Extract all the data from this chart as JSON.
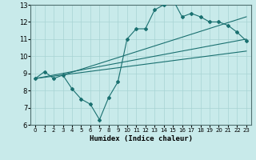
{
  "title": "",
  "xlabel": "Humidex (Indice chaleur)",
  "ylabel": "",
  "bg_color": "#c8eaea",
  "grid_color": "#a8d4d4",
  "line_color": "#1a7070",
  "xlim": [
    -0.5,
    23.5
  ],
  "ylim": [
    6,
    13
  ],
  "xticks": [
    0,
    1,
    2,
    3,
    4,
    5,
    6,
    7,
    8,
    9,
    10,
    11,
    12,
    13,
    14,
    15,
    16,
    17,
    18,
    19,
    20,
    21,
    22,
    23
  ],
  "yticks": [
    6,
    7,
    8,
    9,
    10,
    11,
    12,
    13
  ],
  "line1_x": [
    0,
    1,
    2,
    3,
    4,
    5,
    6,
    7,
    8,
    9,
    10,
    11,
    12,
    13,
    14,
    15,
    16,
    17,
    18,
    19,
    20,
    21,
    22,
    23
  ],
  "line1_y": [
    8.7,
    9.1,
    8.7,
    8.9,
    8.1,
    7.5,
    7.2,
    6.3,
    7.6,
    8.5,
    11.0,
    11.6,
    11.6,
    12.7,
    13.0,
    13.3,
    12.3,
    12.5,
    12.3,
    12.0,
    12.0,
    11.8,
    11.4,
    10.9
  ],
  "line2_x": [
    0,
    23
  ],
  "line2_y": [
    8.7,
    11.0
  ],
  "line3_x": [
    0,
    23
  ],
  "line3_y": [
    8.7,
    10.3
  ],
  "line4_x": [
    3,
    23
  ],
  "line4_y": [
    8.9,
    12.3
  ]
}
